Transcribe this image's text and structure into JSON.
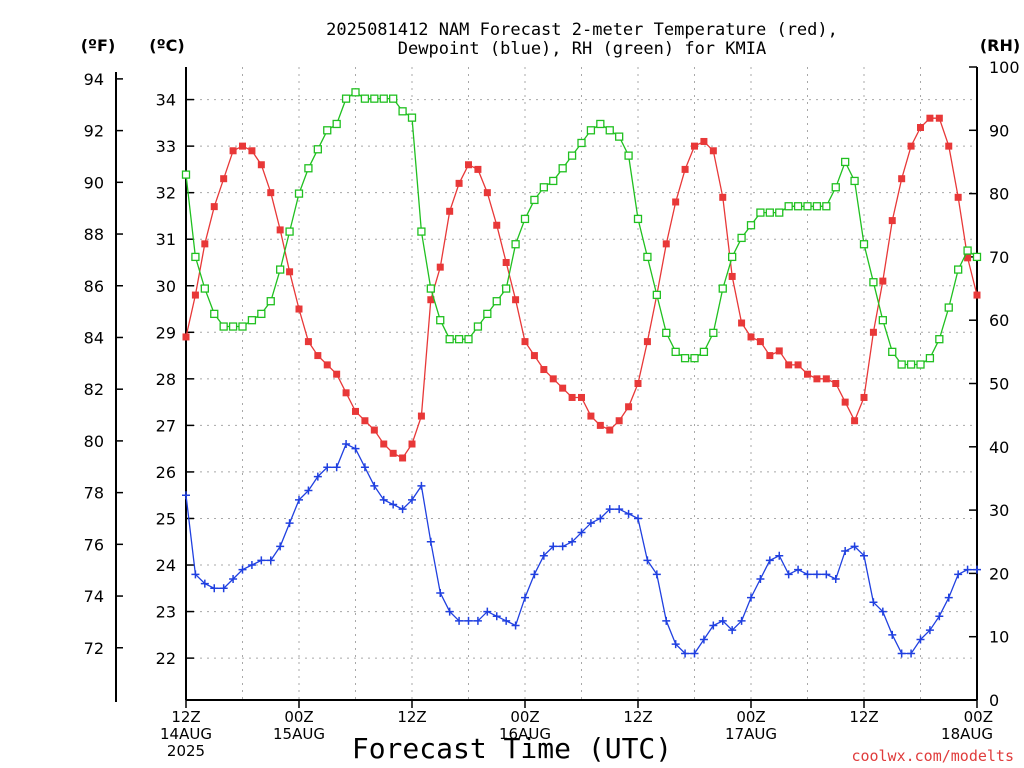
{
  "chart_data": {
    "type": "line",
    "title_line1": "2025081412 NAM Forecast 2-meter Temperature (red),",
    "title_line2": "Dewpoint (blue), RH (green) for KMIA",
    "xlabel": "Forecast Time (UTC)",
    "credit": "coolwx.com/modelts",
    "units": {
      "fahrenheit": "(ºF)",
      "celsius": "(ºC)",
      "rh": "(RH)"
    },
    "x_ticks": [
      {
        "hour": 0,
        "line1": "12Z",
        "line2": "14AUG",
        "line3": "2025"
      },
      {
        "hour": 12,
        "line1": "00Z",
        "line2": "15AUG",
        "line3": ""
      },
      {
        "hour": 24,
        "line1": "12Z",
        "line2": "",
        "line3": ""
      },
      {
        "hour": 36,
        "line1": "00Z",
        "line2": "16AUG",
        "line3": ""
      },
      {
        "hour": 48,
        "line1": "12Z",
        "line2": "",
        "line3": ""
      },
      {
        "hour": 60,
        "line1": "00Z",
        "line2": "17AUG",
        "line3": ""
      },
      {
        "hour": 72,
        "line1": "12Z",
        "line2": "",
        "line3": ""
      },
      {
        "hour": 84,
        "line1": "00Z",
        "line2": "18AUG",
        "line3": ""
      }
    ],
    "xlim_hours": [
      0,
      84
    ],
    "celsius_ticks": [
      22,
      23,
      24,
      25,
      26,
      27,
      28,
      29,
      30,
      31,
      32,
      33,
      34
    ],
    "fahrenheit_ticks": [
      72,
      74,
      76,
      78,
      80,
      82,
      84,
      86,
      88,
      90,
      92,
      94
    ],
    "rh_ticks": [
      0,
      10,
      20,
      30,
      40,
      50,
      60,
      70,
      80,
      90,
      100
    ],
    "ylim_celsius": [
      21.1,
      34.7
    ],
    "ylim_rh": [
      0,
      100
    ],
    "grid": true,
    "colors": {
      "temperature": "#e83838",
      "dewpoint": "#2040e0",
      "rh": "#20c020"
    },
    "series": [
      {
        "name": "Temperature (red)",
        "units": "celsius",
        "values": [
          28.9,
          29.8,
          30.9,
          31.7,
          32.3,
          32.9,
          33.0,
          32.9,
          32.6,
          32.0,
          31.2,
          30.3,
          29.5,
          28.8,
          28.5,
          28.3,
          28.1,
          27.7,
          27.3,
          27.1,
          26.9,
          26.6,
          26.4,
          26.3,
          26.6,
          27.2,
          29.7,
          30.4,
          31.6,
          32.2,
          32.6,
          32.5,
          32.0,
          31.3,
          30.5,
          29.7,
          28.8,
          28.5,
          28.2,
          28.0,
          27.8,
          27.6,
          27.6,
          27.2,
          27.0,
          26.9,
          27.1,
          27.4,
          27.9,
          28.8,
          29.8,
          30.9,
          31.8,
          32.5,
          33.0,
          33.1,
          32.9,
          31.9,
          30.2,
          29.2,
          28.9,
          28.8,
          28.5,
          28.6,
          28.3,
          28.3,
          28.1,
          28.0,
          28.0,
          27.9,
          27.5,
          27.1,
          27.6,
          29.0,
          30.1,
          31.4,
          32.3,
          33.0,
          33.4,
          33.6,
          33.6,
          33.0,
          31.9,
          30.6,
          29.8
        ]
      },
      {
        "name": "Dewpoint (blue)",
        "units": "celsius",
        "values": [
          25.5,
          23.8,
          23.6,
          23.5,
          23.5,
          23.7,
          23.9,
          24.0,
          24.1,
          24.1,
          24.4,
          24.9,
          25.4,
          25.6,
          25.9,
          26.1,
          26.1,
          26.6,
          26.5,
          26.1,
          25.7,
          25.4,
          25.3,
          25.2,
          25.4,
          25.7,
          24.5,
          23.4,
          23.0,
          22.8,
          22.8,
          22.8,
          23.0,
          22.9,
          22.8,
          22.7,
          23.3,
          23.8,
          24.2,
          24.4,
          24.4,
          24.5,
          24.7,
          24.9,
          25.0,
          25.2,
          25.2,
          25.1,
          25.0,
          24.1,
          23.8,
          22.8,
          22.3,
          22.1,
          22.1,
          22.4,
          22.7,
          22.8,
          22.6,
          22.8,
          23.3,
          23.7,
          24.1,
          24.2,
          23.8,
          23.9,
          23.8,
          23.8,
          23.8,
          23.7,
          24.3,
          24.4,
          24.2,
          23.2,
          23.0,
          22.5,
          22.1,
          22.1,
          22.4,
          22.6,
          22.9,
          23.3,
          23.8,
          23.9,
          23.9
        ]
      },
      {
        "name": "RH (green)",
        "units": "percent",
        "values": [
          83,
          70,
          65,
          61,
          59,
          59,
          59,
          60,
          61,
          63,
          68,
          74,
          80,
          84,
          87,
          90,
          91,
          95,
          96,
          95,
          95,
          95,
          95,
          93,
          92,
          74,
          65,
          60,
          57,
          57,
          57,
          59,
          61,
          63,
          65,
          72,
          76,
          79,
          81,
          82,
          84,
          86,
          88,
          90,
          91,
          90,
          89,
          86,
          76,
          70,
          64,
          58,
          55,
          54,
          54,
          55,
          58,
          65,
          70,
          73,
          75,
          77,
          77,
          77,
          78,
          78,
          78,
          78,
          78,
          81,
          85,
          82,
          72,
          66,
          60,
          55,
          53,
          53,
          53,
          54,
          57,
          62,
          68,
          71,
          70
        ]
      }
    ]
  }
}
